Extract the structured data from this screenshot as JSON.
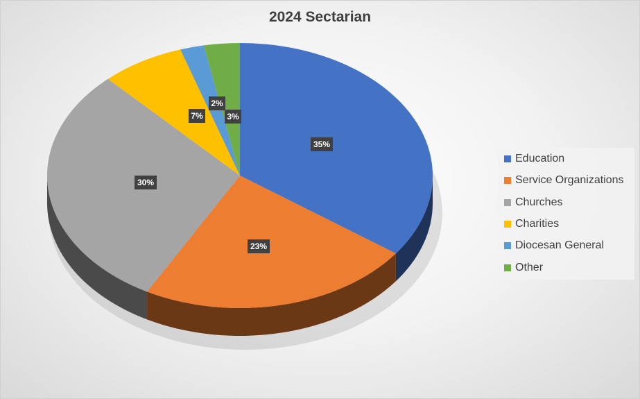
{
  "chart_data": {
    "type": "pie",
    "style": "3d",
    "title": "2024 Sectarian",
    "legend_position": "right",
    "slices": [
      {
        "label": "Education",
        "value": 35,
        "data_label": "35%",
        "color": "#4472C4"
      },
      {
        "label": "Service Organizations",
        "value": 23,
        "data_label": "23%",
        "color": "#ED7D31"
      },
      {
        "label": "Churches",
        "value": 30,
        "data_label": "30%",
        "color": "#A5A5A5"
      },
      {
        "label": "Charities",
        "value": 7,
        "data_label": "7%",
        "color": "#FFC000"
      },
      {
        "label": "Diocesan General",
        "value": 2,
        "data_label": "2%",
        "color": "#5B9BD5"
      },
      {
        "label": "Other",
        "value": 3,
        "data_label": "3%",
        "color": "#70AD47"
      }
    ]
  }
}
